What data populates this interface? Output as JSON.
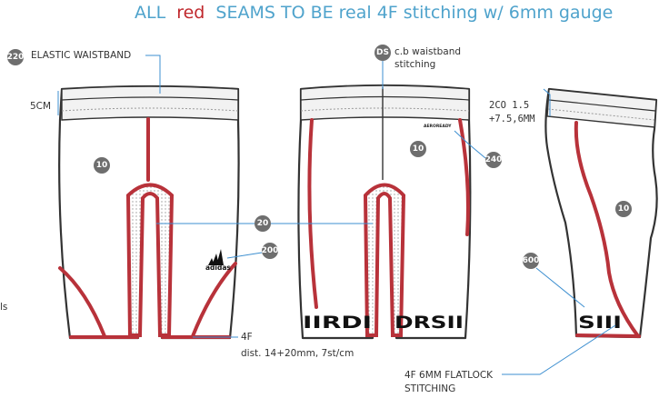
{
  "title": {
    "part1": "ALL",
    "part2": "red",
    "part3": "SEAMS TO BE real 4F stitching w/ 6mm gauge"
  },
  "callouts": {
    "elastic": {
      "badge": "220",
      "text": "ELASTIC WAISTBAND"
    },
    "height": "5CM",
    "cb": {
      "badge": "DS",
      "line1": "c.b waistband",
      "line2": "stitching"
    },
    "co": {
      "line1": "2CO 1.5",
      "line2": "+7.5,6MM"
    },
    "fabric_front": "10",
    "fabric_back": "10",
    "fabric_side": "10",
    "logo_back": {
      "badge": "240",
      "mark": "AEROREADY"
    },
    "gusset": "20",
    "logo_front": {
      "badge": "200",
      "mark": "adidas"
    },
    "print_side": "600",
    "hem": {
      "line1": "4F",
      "line2": "dist. 14+20mm, 7st/cm"
    },
    "flatlock": {
      "line1": "4F 6MM FLATLOCK",
      "line2": "STITCHING"
    },
    "edge_mark": "ls"
  },
  "prints": {
    "back_left": "IIRDI",
    "back_right": "DRSII",
    "side": "SIII"
  },
  "colors": {
    "seam": "#b8323a",
    "outline": "#333333",
    "leader": "#3d8fd0",
    "badge": "#6e6e6e"
  }
}
